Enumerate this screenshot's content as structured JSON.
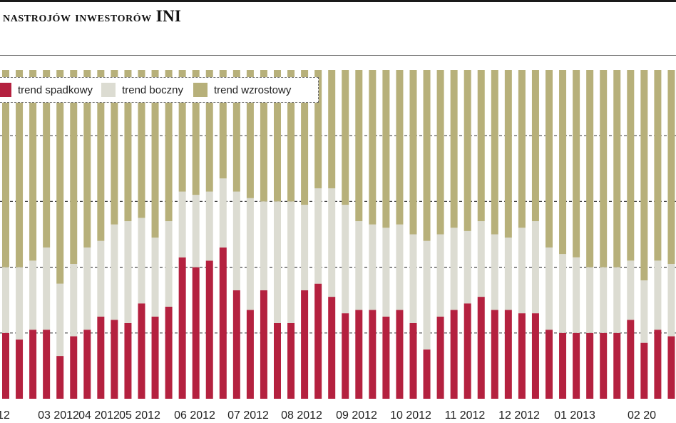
{
  "title": {
    "main": "nastrojów inwestorów",
    "suffix": "INI"
  },
  "colors": {
    "spadkowy": "#b4213f",
    "boczny": "#dcdcd2",
    "wzrostowy": "#b7b07a"
  },
  "legend": [
    {
      "label": "trend spadkowy",
      "color": "#b4213f"
    },
    {
      "label": "trend boczny",
      "color": "#dcdcd2"
    },
    {
      "label": "trend wzrostowy",
      "color": "#b7b07a"
    }
  ],
  "chart_data": {
    "type": "bar",
    "stacked": true,
    "ylim": [
      0,
      100
    ],
    "grid": true,
    "x_tick_labels": [
      "12",
      "03 2012",
      "04 2012",
      "05 2012",
      "06 2012",
      "07 2012",
      "08 2012",
      "09 2012",
      "10 2012",
      "11 2012",
      "12 2012",
      "01 2013",
      "02 20"
    ],
    "series": [
      {
        "name": "trend spadkowy",
        "values": [
          20,
          18,
          21,
          21,
          13,
          19,
          21,
          25,
          24,
          23,
          29,
          25,
          28,
          43,
          40,
          42,
          46,
          33,
          27,
          33,
          23,
          23,
          33,
          35,
          31,
          26,
          27,
          27,
          25,
          27,
          23,
          15,
          25,
          27,
          29,
          31,
          27,
          27,
          26,
          26,
          21,
          20,
          20,
          20,
          20,
          20,
          24,
          17,
          21,
          19,
          21,
          22,
          23
        ]
      },
      {
        "name": "trend boczny",
        "values": [
          20,
          22,
          21,
          25,
          22,
          22,
          25,
          23,
          29,
          31,
          26,
          24,
          26,
          20,
          22,
          21,
          21,
          30,
          34,
          27,
          37,
          37,
          26,
          29,
          33,
          33,
          27,
          26,
          27,
          26,
          27,
          33,
          25,
          25,
          22,
          23,
          23,
          22,
          26,
          28,
          25,
          24,
          23,
          20,
          20,
          20,
          18,
          19,
          21,
          22,
          20,
          20,
          20
        ]
      },
      {
        "name": "trend wzrostowy",
        "values": [
          60,
          60,
          58,
          54,
          65,
          59,
          54,
          52,
          47,
          46,
          45,
          51,
          46,
          37,
          38,
          37,
          33,
          37,
          39,
          40,
          40,
          40,
          41,
          36,
          36,
          41,
          46,
          47,
          48,
          47,
          50,
          52,
          50,
          48,
          49,
          46,
          50,
          51,
          48,
          46,
          54,
          56,
          57,
          60,
          60,
          60,
          58,
          64,
          58,
          59,
          59,
          58,
          57
        ]
      }
    ]
  }
}
